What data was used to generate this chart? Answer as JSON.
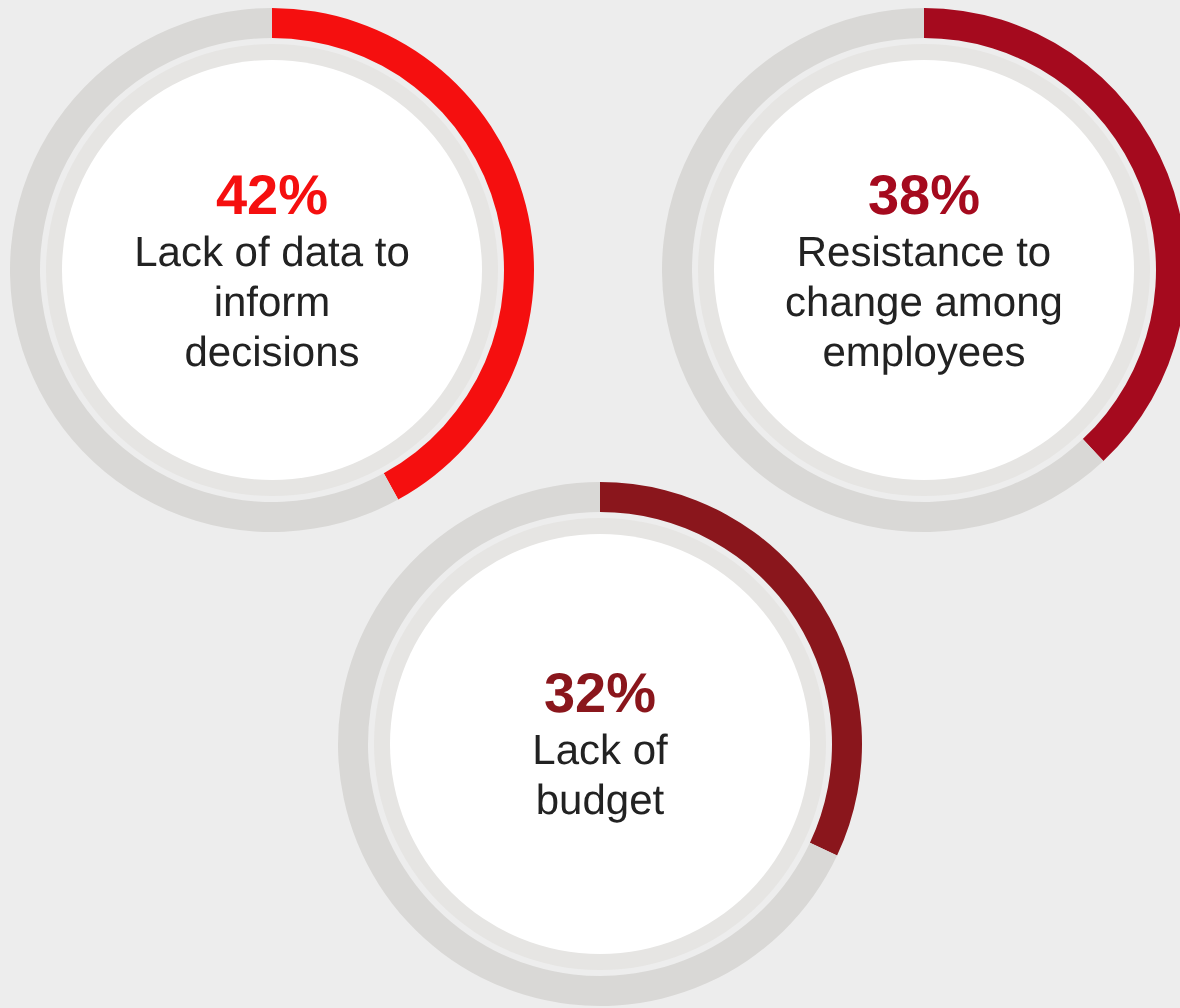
{
  "chart_data": [
    {
      "type": "donut",
      "categories": [
        "Lack of data to inform decisions",
        null
      ],
      "values": [
        42,
        58
      ],
      "value_labels": [
        "42%",
        null
      ],
      "colors": [
        "#f50f0f",
        "#d9d8d6"
      ]
    },
    {
      "type": "donut",
      "categories": [
        "Resistance to change among employees",
        null
      ],
      "values": [
        38,
        62
      ],
      "value_labels": [
        "38%",
        null
      ],
      "colors": [
        "#a50a1e",
        "#d9d8d6"
      ]
    },
    {
      "type": "donut",
      "categories": [
        "Lack of budget",
        null
      ],
      "values": [
        32,
        68
      ],
      "value_labels": [
        "32%",
        null
      ],
      "colors": [
        "#8a161c",
        "#d9d8d6"
      ]
    }
  ]
}
